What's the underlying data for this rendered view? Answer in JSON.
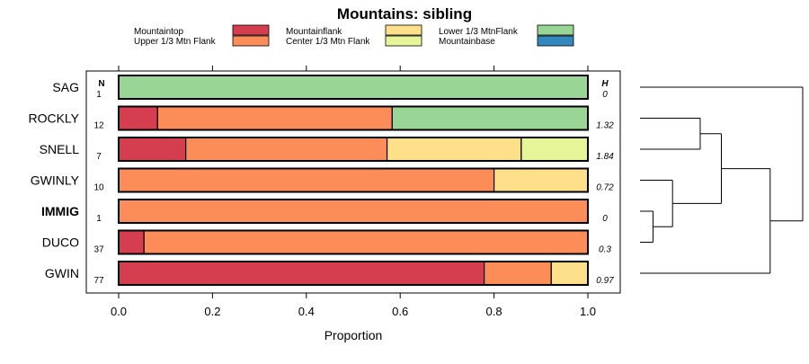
{
  "chart_data": {
    "type": "bar",
    "title": "Mountains: sibling",
    "xlabel": "Proportion",
    "ylabel": "",
    "xlim": [
      0,
      1
    ],
    "x_ticks": [
      "0.0",
      "0.2",
      "0.4",
      "0.6",
      "0.8",
      "1.0"
    ],
    "n_header": "N",
    "h_header": "H",
    "legend_position": "top",
    "series": [
      {
        "name": "Mountaintop",
        "color": "#D53E4F"
      },
      {
        "name": "Upper 1/3 Mtn Flank",
        "color": "#FC8D59"
      },
      {
        "name": "Mountainflank",
        "color": "#FEE08B"
      },
      {
        "name": "Center 1/3 Mtn Flank",
        "color": "#E6F598"
      },
      {
        "name": "Lower 1/3 MtnFlank",
        "color": "#99D594"
      },
      {
        "name": "Mountainbase",
        "color": "#3288BD"
      }
    ],
    "categories": [
      {
        "label": "SAG",
        "n": "1",
        "h": "0",
        "bold": false,
        "values": [
          0,
          0,
          0,
          0,
          1,
          0
        ]
      },
      {
        "label": "ROCKLY",
        "n": "12",
        "h": "1.32",
        "bold": false,
        "values": [
          0.083,
          0.5,
          0,
          0,
          0.417,
          0
        ]
      },
      {
        "label": "SNELL",
        "n": "7",
        "h": "1.84",
        "bold": false,
        "values": [
          0.143,
          0.429,
          0.286,
          0.143,
          0,
          0
        ]
      },
      {
        "label": "GWINLY",
        "n": "10",
        "h": "0.72",
        "bold": false,
        "values": [
          0,
          0.8,
          0.2,
          0,
          0,
          0
        ]
      },
      {
        "label": "IMMIG",
        "n": "1",
        "h": "0",
        "bold": true,
        "values": [
          0,
          1,
          0,
          0,
          0,
          0
        ]
      },
      {
        "label": "DUCO",
        "n": "37",
        "h": "0.3",
        "bold": false,
        "values": [
          0.054,
          0.946,
          0,
          0,
          0,
          0
        ]
      },
      {
        "label": "GWIN",
        "n": "77",
        "h": "0.97",
        "bold": false,
        "values": [
          0.779,
          0.143,
          0.078,
          0,
          0,
          0
        ]
      }
    ],
    "dendrogram": {
      "leaf_order": [
        "SAG",
        "ROCKLY",
        "SNELL",
        "GWINLY",
        "IMMIG",
        "DUCO",
        "GWIN"
      ],
      "merges": [
        {
          "a": "IMMIG",
          "b": "DUCO",
          "height": 0.08
        },
        {
          "a": "GWINLY",
          "b": "IMMIG+DUCO",
          "height": 0.2
        },
        {
          "a": "ROCKLY",
          "b": "SNELL",
          "height": 0.37
        },
        {
          "a": "ROCKLY+SNELL",
          "b": "GWINLY+IMMIG+DUCO",
          "height": 0.5
        },
        {
          "a": "ROCKLY+SNELL+GWINLY+IMMIG+DUCO",
          "b": "GWIN",
          "height": 0.8
        },
        {
          "a": "SAG",
          "b": "rest",
          "height": 1.0
        }
      ]
    }
  }
}
